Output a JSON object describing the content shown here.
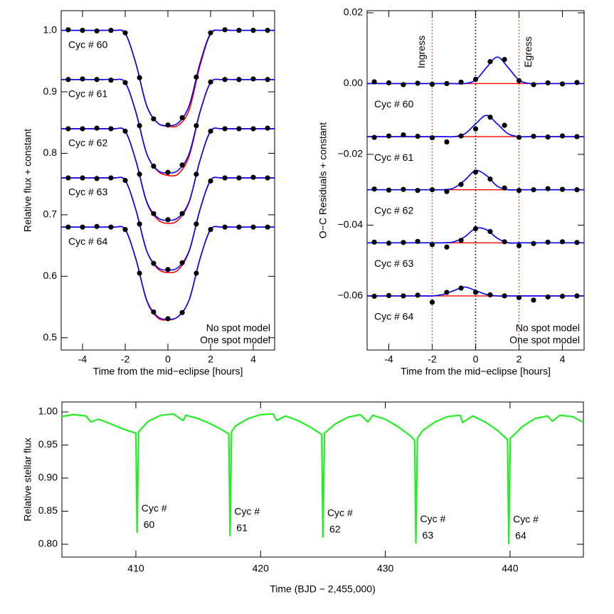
{
  "chart_data": [
    {
      "type": "transit",
      "xlabel": "Time from the mid−eclipse [hours]",
      "ylabel": "Relative flux + constant",
      "xlim": [
        -5,
        5
      ],
      "ylim": [
        0.48,
        1.032
      ],
      "xticks": [
        -4,
        -2,
        0,
        2,
        4
      ],
      "yticks": [
        0.5,
        0.6,
        0.7,
        0.8,
        0.9,
        {
          "value": 1,
          "label": "1.0"
        }
      ],
      "point_color": "#000000",
      "legend": [
        {
          "name": "No spot model",
          "color": "#ff0000"
        },
        {
          "name": "One spot model",
          "color": "#0000ff"
        }
      ],
      "x_points": [
        -4.67,
        -4.0,
        -3.33,
        -2.67,
        -2.0,
        -1.33,
        -0.67,
        0,
        0.67,
        1.33,
        2.0,
        2.67,
        3.33,
        4.0,
        4.67
      ],
      "x_model": [
        -5,
        -4.5,
        -4,
        -3.5,
        -3,
        -2.5,
        -2,
        -1.5,
        -1,
        -0.5,
        0,
        0.5,
        1,
        1.5,
        2,
        2.5,
        3,
        3.5,
        4,
        4.5,
        5
      ],
      "cycles": [
        {
          "label": "Cyc # 60",
          "points": [
            1.001,
            1,
            0.999,
            1,
            0.996,
            0.923,
            0.856,
            0.846,
            0.858,
            0.924,
            0.996,
            1.001,
            1,
            1,
            1
          ],
          "models": [
            [
              1,
              1,
              1,
              1,
              1,
              1,
              0.995,
              0.946,
              0.878,
              0.85,
              0.844,
              0.846,
              0.871,
              0.942,
              0.994,
              1,
              1,
              1,
              1,
              1,
              1
            ],
            [
              1,
              1,
              1,
              1,
              1,
              1,
              0.995,
              0.946,
              0.878,
              0.85,
              0.845,
              0.85,
              0.878,
              0.946,
              0.995,
              1,
              1,
              1,
              1,
              1,
              1
            ]
          ]
        },
        {
          "label": "Cyc # 61",
          "points": [
            0.92,
            0.921,
            0.92,
            0.919,
            0.915,
            0.845,
            0.779,
            0.769,
            0.781,
            0.845,
            0.916,
            0.92,
            0.92,
            0.921,
            0.92
          ],
          "models": [
            [
              0.92,
              0.92,
              0.92,
              0.92,
              0.92,
              0.92,
              0.915,
              0.867,
              0.8,
              0.772,
              0.764,
              0.767,
              0.796,
              0.866,
              0.915,
              0.92,
              0.92,
              0.92,
              0.92,
              0.92,
              0.92
            ],
            [
              0.92,
              0.92,
              0.92,
              0.92,
              0.92,
              0.92,
              0.915,
              0.867,
              0.8,
              0.773,
              0.768,
              0.773,
              0.8,
              0.867,
              0.915,
              0.92,
              0.92,
              0.92,
              0.92,
              0.92,
              0.92
            ]
          ]
        },
        {
          "label": "Cyc # 62",
          "points": [
            0.84,
            0.84,
            0.841,
            0.84,
            0.836,
            0.766,
            0.702,
            0.692,
            0.702,
            0.766,
            0.836,
            0.84,
            0.84,
            0.84,
            0.841
          ],
          "models": [
            [
              0.84,
              0.84,
              0.84,
              0.84,
              0.84,
              0.84,
              0.836,
              0.788,
              0.721,
              0.693,
              0.686,
              0.692,
              0.721,
              0.788,
              0.836,
              0.84,
              0.84,
              0.84,
              0.84,
              0.84,
              0.84
            ],
            [
              0.84,
              0.84,
              0.84,
              0.84,
              0.84,
              0.84,
              0.836,
              0.788,
              0.722,
              0.696,
              0.691,
              0.696,
              0.722,
              0.788,
              0.836,
              0.84,
              0.84,
              0.84,
              0.84,
              0.84,
              0.84
            ]
          ]
        },
        {
          "label": "Cyc # 63",
          "points": [
            0.76,
            0.76,
            0.759,
            0.76,
            0.756,
            0.685,
            0.621,
            0.611,
            0.622,
            0.685,
            0.755,
            0.76,
            0.76,
            0.761,
            0.76
          ],
          "models": [
            [
              0.76,
              0.76,
              0.76,
              0.76,
              0.76,
              0.76,
              0.756,
              0.708,
              0.642,
              0.613,
              0.606,
              0.611,
              0.641,
              0.708,
              0.756,
              0.76,
              0.76,
              0.76,
              0.76,
              0.76,
              0.76
            ],
            [
              0.76,
              0.76,
              0.76,
              0.76,
              0.76,
              0.76,
              0.756,
              0.708,
              0.642,
              0.615,
              0.61,
              0.615,
              0.642,
              0.708,
              0.756,
              0.76,
              0.76,
              0.76,
              0.76,
              0.76,
              0.76
            ]
          ]
        },
        {
          "label": "Cyc # 64",
          "points": [
            0.68,
            0.68,
            0.681,
            0.68,
            0.676,
            0.605,
            0.542,
            0.531,
            0.541,
            0.605,
            0.676,
            0.68,
            0.68,
            0.68,
            0.68
          ],
          "models": [
            [
              0.68,
              0.68,
              0.68,
              0.68,
              0.68,
              0.68,
              0.676,
              0.628,
              0.561,
              0.533,
              0.529,
              0.535,
              0.562,
              0.628,
              0.676,
              0.68,
              0.68,
              0.68,
              0.68,
              0.68,
              0.68
            ],
            [
              0.68,
              0.68,
              0.68,
              0.68,
              0.68,
              0.68,
              0.676,
              0.628,
              0.562,
              0.535,
              0.53,
              0.535,
              0.562,
              0.628,
              0.676,
              0.68,
              0.68,
              0.68,
              0.68,
              0.68,
              0.68
            ]
          ]
        }
      ]
    },
    {
      "type": "residual",
      "xlabel": "Time from the mid−eclipse [hours]",
      "ylabel": "O−C Residuals + constant",
      "xlim": [
        -5,
        5
      ],
      "ylim": [
        -0.0753,
        0.0206
      ],
      "xticks": [
        -4,
        -2,
        0,
        2,
        4
      ],
      "yticks": [
        {
          "value": -0.06,
          "label": "−0.06"
        },
        {
          "value": -0.04,
          "label": "−0.04"
        },
        {
          "value": -0.02,
          "label": "−0.02"
        },
        {
          "value": 0,
          "label": "0.00"
        },
        0.02
      ],
      "point_color": "#000000",
      "legend": [
        {
          "name": "No spot model",
          "color": "#ff0000"
        },
        {
          "name": "One spot model",
          "color": "#0000ff"
        }
      ],
      "markers": [
        {
          "x": -2,
          "label": "Ingress",
          "color": "#a0522d"
        },
        {
          "x": 0,
          "color": "#000000"
        },
        {
          "x": 2,
          "label": "Egress",
          "color": "#a0522d"
        }
      ],
      "x_points": [
        -4.67,
        -4.0,
        -3.33,
        -2.67,
        -2.0,
        -1.33,
        -0.67,
        0,
        0.67,
        1.33,
        2.0,
        2.67,
        3.33,
        4.0,
        4.67
      ],
      "x_model": [
        -5,
        -4.5,
        -4,
        -3.5,
        -3,
        -2.5,
        -2,
        -1.5,
        -1,
        -0.5,
        0,
        0.5,
        1,
        1.5,
        2,
        2.5,
        3,
        3.5,
        4,
        4.5,
        5
      ],
      "cycles": [
        {
          "label": "Cyc # 60",
          "offset": 0,
          "points": [
            0.0005,
            0.0002,
            -0.0003,
            0.0001,
            -0.0002,
            0.0,
            0.0004,
            0.0012,
            0.0062,
            0.0068,
            0.0008,
            -0.0003,
            0.0002,
            -0.0001,
            0.0003
          ],
          "spot_model": [
            0,
            0,
            0,
            0,
            0,
            0,
            0,
            0,
            0,
            0,
            0.001,
            0.0045,
            0.0075,
            0.0045,
            0.001,
            0,
            0,
            0,
            0,
            0,
            0
          ]
        },
        {
          "label": "Cyc # 61",
          "offset": -0.015,
          "points": [
            -0.0152,
            -0.0148,
            -0.0145,
            -0.0149,
            -0.0153,
            -0.0165,
            -0.0148,
            -0.0128,
            -0.0095,
            -0.0118,
            -0.0152,
            -0.0149,
            -0.0151,
            -0.0148,
            -0.015
          ],
          "spot_model": [
            -0.015,
            -0.015,
            -0.015,
            -0.015,
            -0.015,
            -0.015,
            -0.015,
            -0.015,
            -0.015,
            -0.0142,
            -0.0114,
            -0.009,
            -0.0114,
            -0.0142,
            -0.015,
            -0.015,
            -0.015,
            -0.015,
            -0.015,
            -0.015,
            -0.015
          ]
        },
        {
          "label": "Cyc # 62",
          "offset": -0.03,
          "points": [
            -0.0298,
            -0.0301,
            -0.0299,
            -0.0302,
            -0.03,
            -0.0305,
            -0.0285,
            -0.025,
            -0.027,
            -0.0295,
            -0.0302,
            -0.03,
            -0.0297,
            -0.0299,
            -0.03
          ],
          "spot_model": [
            -0.03,
            -0.03,
            -0.03,
            -0.03,
            -0.03,
            -0.03,
            -0.03,
            -0.03,
            -0.0295,
            -0.0273,
            -0.0246,
            -0.026,
            -0.029,
            -0.03,
            -0.03,
            -0.03,
            -0.03,
            -0.03,
            -0.03,
            -0.03,
            -0.03
          ]
        },
        {
          "label": "Cyc # 63",
          "offset": -0.045,
          "points": [
            -0.0448,
            -0.0451,
            -0.0449,
            -0.0446,
            -0.0455,
            -0.0462,
            -0.0443,
            -0.041,
            -0.0418,
            -0.0447,
            -0.0458,
            -0.0452,
            -0.0448,
            -0.0447,
            -0.0449
          ],
          "spot_model": [
            -0.045,
            -0.045,
            -0.045,
            -0.045,
            -0.045,
            -0.045,
            -0.045,
            -0.045,
            -0.0447,
            -0.0433,
            -0.0409,
            -0.0413,
            -0.0437,
            -0.045,
            -0.045,
            -0.045,
            -0.045,
            -0.045,
            -0.045,
            -0.045,
            -0.045
          ]
        },
        {
          "label": "Cyc # 64",
          "offset": -0.06,
          "points": [
            -0.0601,
            -0.0599,
            -0.06,
            -0.0598,
            -0.0618,
            -0.059,
            -0.0578,
            -0.059,
            -0.0597,
            -0.06,
            -0.0605,
            -0.0612,
            -0.0603,
            -0.0601,
            -0.06
          ],
          "spot_model": [
            -0.06,
            -0.06,
            -0.06,
            -0.06,
            -0.06,
            -0.06,
            -0.06,
            -0.0596,
            -0.0585,
            -0.0575,
            -0.0585,
            -0.0596,
            -0.06,
            -0.06,
            -0.06,
            -0.06,
            -0.06,
            -0.06,
            -0.06,
            -0.06,
            -0.06
          ]
        }
      ]
    },
    {
      "type": "line",
      "xlabel": "Time (BJD − 2,455,000)",
      "ylabel": "Relative stellar flux",
      "xlim": [
        404.07,
        445.88
      ],
      "ylim": [
        0.7806,
        1.0151
      ],
      "xticks": [
        410,
        420,
        430,
        440
      ],
      "yticks": [
        {
          "value": 0.8,
          "label": "0.80"
        },
        0.85,
        {
          "value": 0.9,
          "label": "0.90"
        },
        0.95,
        {
          "value": 1,
          "label": "1.00"
        }
      ],
      "color": "#22ee22",
      "x": [
        404,
        405,
        406,
        406.4,
        407,
        408,
        409,
        410,
        410.1,
        410.22,
        411,
        412,
        413,
        413.8,
        414,
        415,
        416,
        417,
        417.45,
        417.55,
        417.67,
        418,
        419,
        420,
        421,
        421.3,
        422,
        423,
        424,
        424.9,
        425,
        425.12,
        426,
        427,
        428,
        428.6,
        429,
        430,
        431,
        432,
        432.35,
        432.45,
        432.57,
        433,
        434,
        435,
        436,
        436.2,
        437,
        438,
        439,
        439.8,
        439.9,
        440.02,
        441,
        442,
        443,
        443.4,
        444,
        445,
        445.8
      ],
      "values": [
        0.993,
        0.996,
        0.994,
        0.985,
        0.989,
        0.982,
        0.974,
        0.968,
        0.818,
        0.97,
        0.986,
        0.995,
        0.997,
        0.987,
        0.995,
        0.99,
        0.982,
        0.972,
        0.967,
        0.813,
        0.97,
        0.979,
        0.99,
        0.996,
        0.997,
        0.987,
        0.994,
        0.987,
        0.977,
        0.966,
        0.811,
        0.968,
        0.982,
        0.992,
        0.996,
        0.985,
        0.995,
        0.989,
        0.978,
        0.964,
        0.957,
        0.802,
        0.96,
        0.972,
        0.985,
        0.993,
        0.995,
        0.984,
        0.994,
        0.985,
        0.972,
        0.958,
        0.801,
        0.96,
        0.978,
        0.99,
        0.994,
        0.986,
        0.995,
        0.993,
        0.985
      ],
      "cycle_labels": [
        {
          "text": "Cyc #",
          "cycle": "60"
        },
        {
          "text": "Cyc #",
          "cycle": "61"
        },
        {
          "text": "Cyc #",
          "cycle": "62"
        },
        {
          "text": "Cyc #",
          "cycle": "63"
        },
        {
          "text": "Cyc #",
          "cycle": "64"
        }
      ]
    }
  ]
}
